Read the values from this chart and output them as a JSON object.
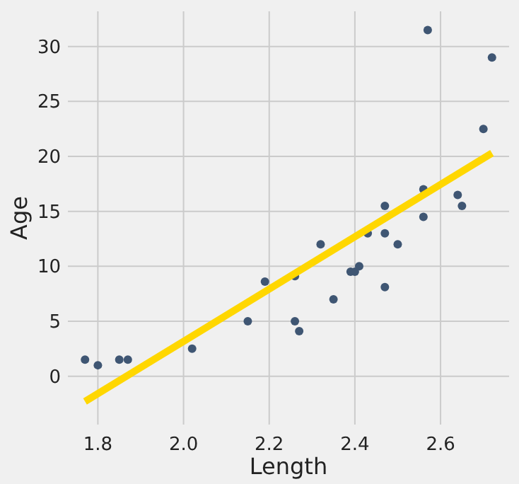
{
  "chart_data": {
    "type": "scatter",
    "xlabel": "Length",
    "ylabel": "Age",
    "xlim": [
      1.73,
      2.76
    ],
    "ylim": [
      -4.4,
      33.2
    ],
    "xticks": [
      {
        "value": 1.8,
        "label": "1.8"
      },
      {
        "value": 2.0,
        "label": "2.0"
      },
      {
        "value": 2.2,
        "label": "2.2"
      },
      {
        "value": 2.4,
        "label": "2.4"
      },
      {
        "value": 2.6,
        "label": "2.6"
      }
    ],
    "yticks": [
      0,
      5,
      10,
      15,
      20,
      25,
      30
    ],
    "grid": true,
    "series": [
      {
        "marker": "circle",
        "color": "#3f5673",
        "x": [
          1.77,
          1.8,
          1.85,
          1.87,
          2.02,
          2.15,
          2.19,
          2.26,
          2.26,
          2.27,
          2.32,
          2.35,
          2.39,
          2.4,
          2.41,
          2.43,
          2.47,
          2.47,
          2.5,
          2.47,
          2.56,
          2.56,
          2.57,
          2.64,
          2.65,
          2.7,
          2.72
        ],
        "values": [
          1.5,
          1.0,
          1.5,
          1.5,
          2.5,
          5.0,
          8.6,
          9.1,
          5.0,
          4.1,
          12,
          7.0,
          9.5,
          9.5,
          10,
          13,
          13,
          8.1,
          12,
          15.5,
          17,
          14.5,
          31.5,
          16.5,
          15.5,
          22.5,
          29
        ]
      },
      {
        "type": "line",
        "color": "#ffd700",
        "x": [
          1.77,
          2.72
        ],
        "values": [
          -2.3,
          20.3
        ]
      }
    ]
  }
}
